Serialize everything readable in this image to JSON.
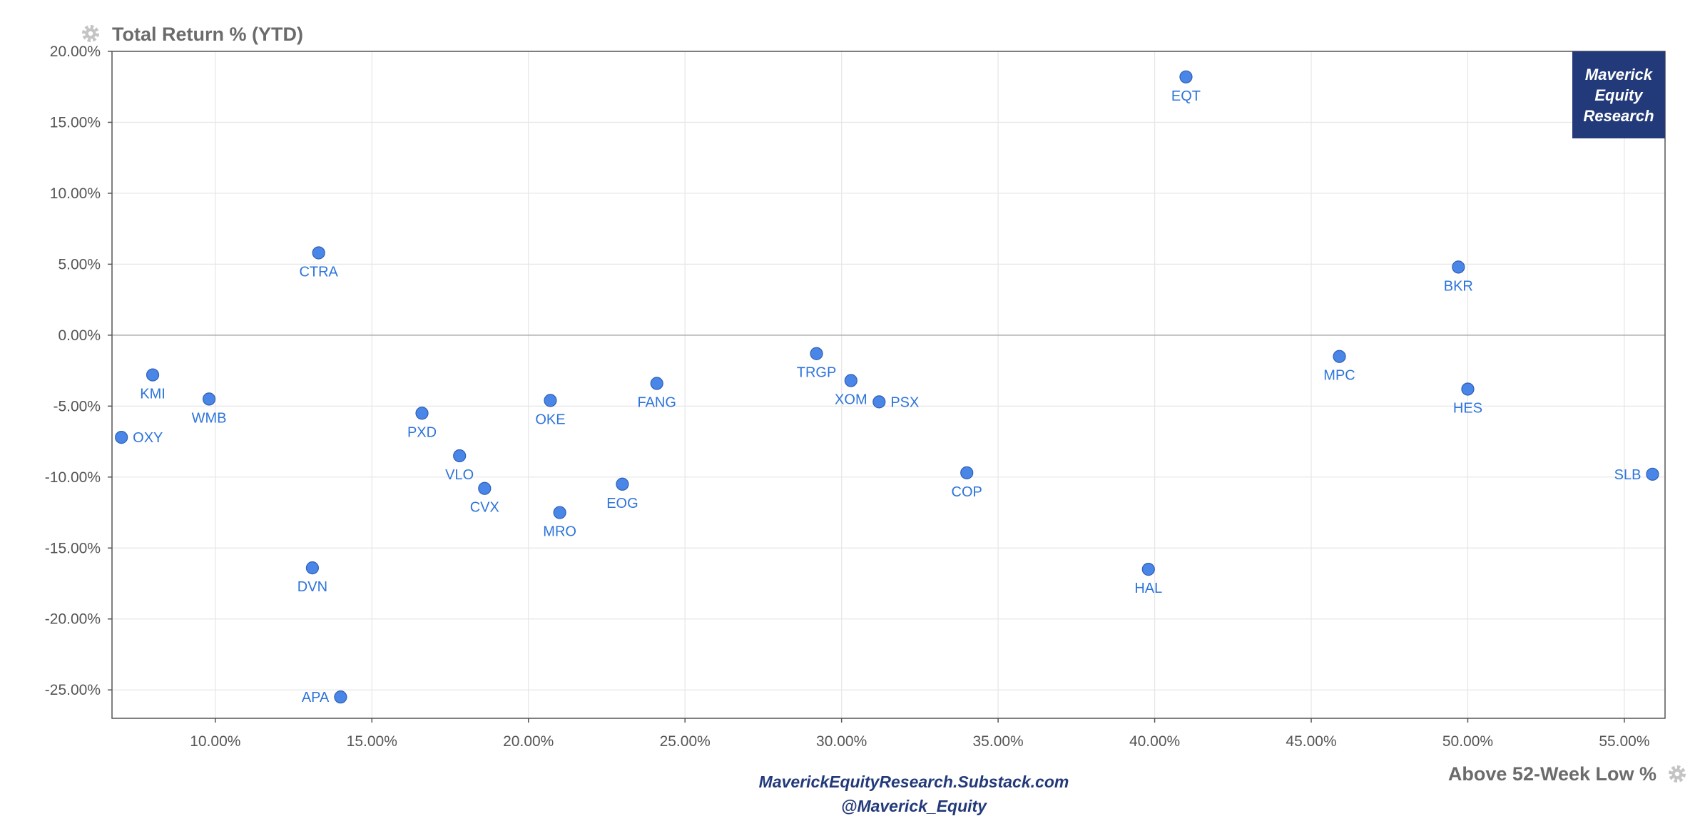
{
  "chart_data": {
    "type": "scatter",
    "ylabel": "Total Return % (YTD)",
    "xlabel": "Above 52-Week Low %",
    "xlim": [
      6.7,
      56.3
    ],
    "ylim": [
      -27.0,
      20.0
    ],
    "xticks": [
      10,
      15,
      20,
      25,
      30,
      35,
      40,
      45,
      50,
      55
    ],
    "yticks": [
      20,
      15,
      10,
      5,
      0,
      -5,
      -10,
      -15,
      -20,
      -25
    ],
    "xtick_labels": [
      "10.00%",
      "15.00%",
      "20.00%",
      "25.00%",
      "30.00%",
      "35.00%",
      "40.00%",
      "45.00%",
      "50.00%",
      "55.00%"
    ],
    "ytick_labels": [
      "20.00%",
      "15.00%",
      "10.00%",
      "5.00%",
      "0.00%",
      "-5.00%",
      "-10.00%",
      "-15.00%",
      "-20.00%",
      "-25.00%"
    ],
    "grid": true,
    "series_color": "#4a86e8",
    "label_color": "#2d74da",
    "points": [
      {
        "label": "EQT",
        "x": 41.0,
        "y": 18.2,
        "pos": "below"
      },
      {
        "label": "CTRA",
        "x": 13.3,
        "y": 5.8,
        "pos": "below"
      },
      {
        "label": "BKR",
        "x": 49.7,
        "y": 4.8,
        "pos": "below"
      },
      {
        "label": "KMI",
        "x": 8.0,
        "y": -2.8,
        "pos": "below"
      },
      {
        "label": "WMB",
        "x": 9.8,
        "y": -4.5,
        "pos": "below"
      },
      {
        "label": "OXY",
        "x": 7.0,
        "y": -7.2,
        "pos": "right"
      },
      {
        "label": "PXD",
        "x": 16.6,
        "y": -5.5,
        "pos": "below"
      },
      {
        "label": "VLO",
        "x": 17.8,
        "y": -8.5,
        "pos": "below"
      },
      {
        "label": "CVX",
        "x": 18.6,
        "y": -10.8,
        "pos": "below"
      },
      {
        "label": "OKE",
        "x": 20.7,
        "y": -4.6,
        "pos": "below"
      },
      {
        "label": "MRO",
        "x": 21.0,
        "y": -12.5,
        "pos": "below"
      },
      {
        "label": "FANG",
        "x": 24.1,
        "y": -3.4,
        "pos": "below"
      },
      {
        "label": "EOG",
        "x": 23.0,
        "y": -10.5,
        "pos": "below"
      },
      {
        "label": "DVN",
        "x": 13.1,
        "y": -16.4,
        "pos": "below"
      },
      {
        "label": "APA",
        "x": 14.0,
        "y": -25.5,
        "pos": "left"
      },
      {
        "label": "TRGP",
        "x": 29.2,
        "y": -1.3,
        "pos": "below"
      },
      {
        "label": "XOM",
        "x": 30.3,
        "y": -3.2,
        "pos": "below"
      },
      {
        "label": "PSX",
        "x": 31.2,
        "y": -4.7,
        "pos": "right"
      },
      {
        "label": "COP",
        "x": 34.0,
        "y": -9.7,
        "pos": "below"
      },
      {
        "label": "HAL",
        "x": 39.8,
        "y": -16.5,
        "pos": "below"
      },
      {
        "label": "MPC",
        "x": 45.9,
        "y": -1.5,
        "pos": "below"
      },
      {
        "label": "HES",
        "x": 50.0,
        "y": -3.8,
        "pos": "below"
      },
      {
        "label": "SLB",
        "x": 55.9,
        "y": -9.8,
        "pos": "left"
      }
    ]
  },
  "brand": {
    "line1": "Maverick",
    "line2": "Equity",
    "line3": "Research",
    "background": "#233a7a"
  },
  "footer": {
    "line1": "MaverickEquityResearch.Substack.com",
    "line2": "@Maverick_Equity"
  },
  "icons": {
    "y_axis_settings": "gear-icon",
    "x_axis_settings": "gear-icon"
  }
}
